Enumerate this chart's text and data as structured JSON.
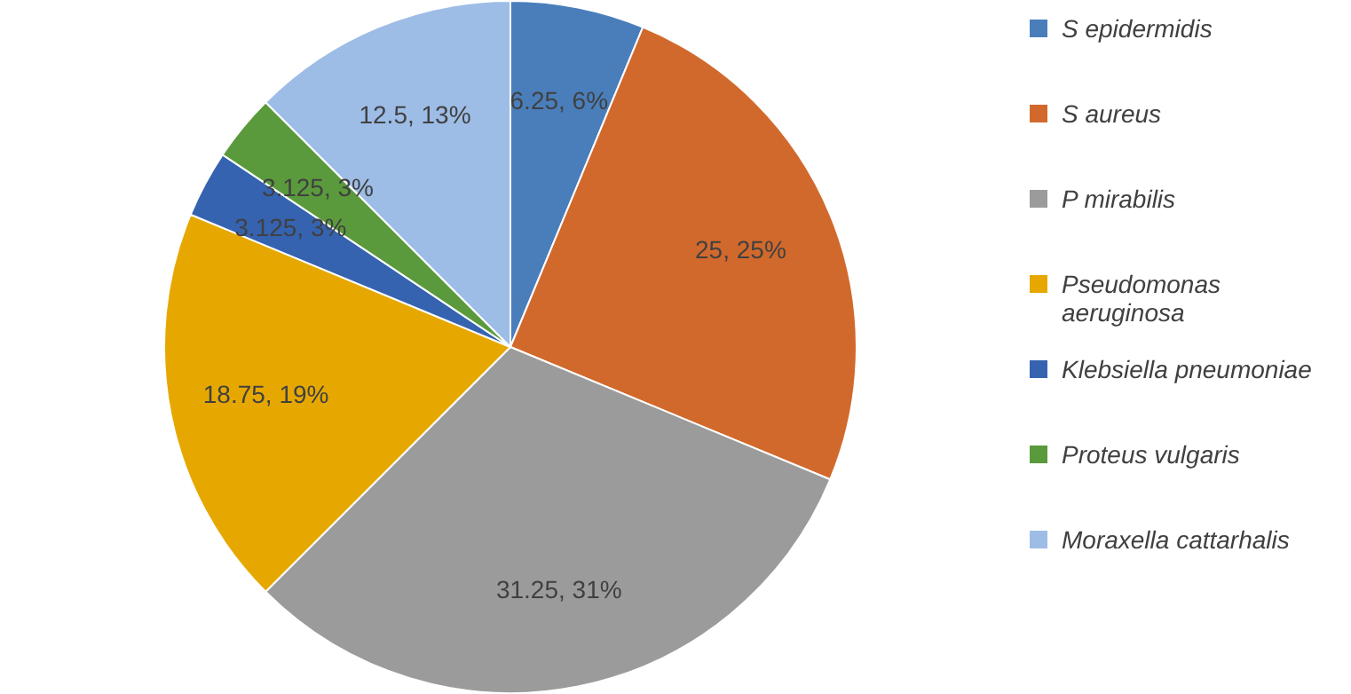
{
  "chart_data": {
    "type": "pie",
    "categories": [
      "S epidermidis",
      "S aureus",
      "P mirabilis",
      "Pseudomonas aeruginosa",
      "Klebsiella pneumoniae",
      "Proteus vulgaris",
      "Moraxella cattarhalis"
    ],
    "values": [
      6.25,
      25,
      31.25,
      18.75,
      3.125,
      3.125,
      12.5
    ],
    "colors": [
      "#4a7ebb",
      "#d2692c",
      "#9b9b9b",
      "#e6a800",
      "#3563b0",
      "#5a9a3c",
      "#9dbde6"
    ],
    "value_labels": [
      "6.25, 6%",
      "25, 25%",
      "31.25, 31%",
      "18.75, 19%",
      "3.125, 3%",
      "3.125, 3%",
      "12.5, 13%"
    ],
    "legend": "right"
  }
}
